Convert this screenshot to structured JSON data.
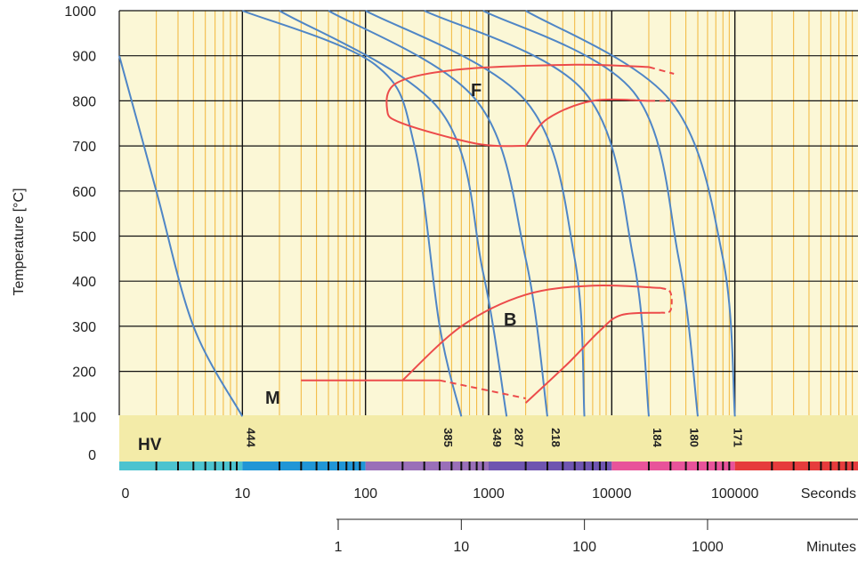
{
  "chart_data": {
    "type": "line",
    "title": "",
    "ylabel": "Temperature [°C]",
    "x_unit_seconds": "Seconds",
    "x_unit_minutes": "Minutes",
    "x_scale": "log",
    "xlim_seconds": [
      1,
      1000000
    ],
    "ylim": [
      0,
      1000
    ],
    "y_ticks": [
      "0",
      "100",
      "200",
      "300",
      "400",
      "500",
      "600",
      "700",
      "800",
      "900",
      "1000"
    ],
    "x_ticks_seconds": [
      "0",
      "10",
      "100",
      "1000",
      "10000",
      "100000"
    ],
    "x_ticks_minutes": [
      "1",
      "10",
      "100",
      "1000"
    ],
    "grid": true,
    "region_labels": [
      "F",
      "B",
      "M"
    ],
    "hardness_label": "HV",
    "hardness_values": [
      "444",
      "385",
      "349",
      "287",
      "218",
      "184",
      "180",
      "171"
    ],
    "colors": {
      "plot_background": "#fbf7d6",
      "hv_band": "#f3eba8",
      "minor_grid": "#f2b63a",
      "major_grid": "#111111",
      "cooling_curves": "#4f86c6",
      "transformation": "#ec4b4b",
      "scale_segments": [
        "#4cc3cf",
        "#2196d6",
        "#9a6fb8",
        "#6f55b0",
        "#e8539a",
        "#e63c3c"
      ]
    },
    "series": [
      {
        "points": [
          [
            1,
            900
          ],
          [
            2,
            600
          ],
          [
            4,
            300
          ],
          [
            10,
            100
          ]
        ]
      },
      {
        "points": [
          [
            10,
            1000
          ],
          [
            120,
            880
          ],
          [
            250,
            700
          ],
          [
            400,
            300
          ],
          [
            600,
            100
          ]
        ]
      },
      {
        "points": [
          [
            20,
            1000
          ],
          [
            400,
            780
          ],
          [
            900,
            420
          ],
          [
            1400,
            100
          ]
        ]
      },
      {
        "points": [
          [
            50,
            1000
          ],
          [
            800,
            800
          ],
          [
            2000,
            450
          ],
          [
            3000,
            100
          ]
        ]
      },
      {
        "points": [
          [
            100,
            1000
          ],
          [
            2000,
            800
          ],
          [
            5000,
            450
          ],
          [
            6000,
            100
          ]
        ]
      },
      {
        "points": [
          [
            300,
            1000
          ],
          [
            6000,
            820
          ],
          [
            15000,
            450
          ],
          [
            20000,
            100
          ]
        ]
      },
      {
        "points": [
          [
            900,
            1000
          ],
          [
            15000,
            820
          ],
          [
            35000,
            450
          ],
          [
            50000,
            100
          ]
        ]
      },
      {
        "points": [
          [
            2000,
            1000
          ],
          [
            30000,
            800
          ],
          [
            80000,
            450
          ],
          [
            100000,
            100
          ]
        ]
      },
      {
        "points": [
          [
            30,
            180
          ],
          [
            400,
            180
          ]
        ]
      },
      {
        "points": [
          [
            400,
            180
          ],
          [
            2000,
            140
          ]
        ]
      },
      {
        "points": [
          [
            200,
            180
          ],
          [
            600,
            300
          ],
          [
            2000,
            370
          ],
          [
            7000,
            390
          ],
          [
            25000,
            385
          ]
        ]
      },
      {
        "points": [
          [
            25000,
            385
          ],
          [
            30000,
            375
          ],
          [
            30000,
            335
          ],
          [
            25000,
            330
          ]
        ]
      },
      {
        "points": [
          [
            2000,
            130
          ],
          [
            4500,
            220
          ],
          [
            8000,
            290
          ],
          [
            12000,
            325
          ],
          [
            25000,
            330
          ]
        ]
      },
      {
        "points": [
          [
            2000,
            700
          ],
          [
            800,
            705
          ],
          [
            200,
            750
          ],
          [
            150,
            780
          ],
          [
            180,
            840
          ],
          [
            600,
            870
          ],
          [
            5000,
            880
          ],
          [
            20000,
            875
          ]
        ]
      },
      {
        "points": [
          [
            20000,
            875
          ],
          [
            32000,
            860
          ]
        ]
      },
      {
        "points": [
          [
            2000,
            700
          ],
          [
            3000,
            760
          ],
          [
            7000,
            800
          ],
          [
            20000,
            800
          ]
        ]
      },
      {
        "points": [
          [
            20000,
            800
          ],
          [
            35000,
            800
          ]
        ]
      }
    ]
  }
}
